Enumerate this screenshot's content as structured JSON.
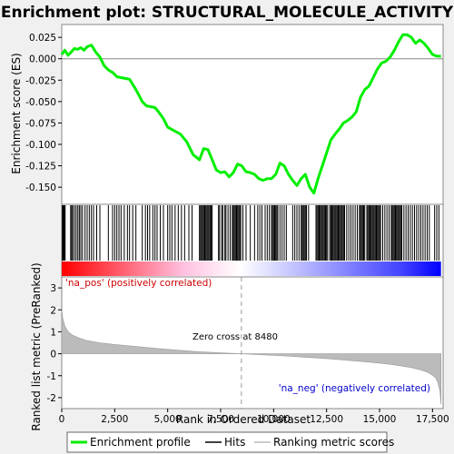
{
  "chart_data": {
    "type": "line",
    "title": "Enrichment plot: STRUCTURAL_MOLECULE_ACTIVITY",
    "xlabel": "Rank in Ordered Dataset",
    "ylabel_top": "Enrichment score (ES)",
    "ylabel_bottom": "Ranked list metric (PreRanked)",
    "xlim": [
      0,
      18000
    ],
    "x_ticks": [
      0,
      2500,
      5000,
      7500,
      10000,
      12500,
      15000,
      17500
    ],
    "x_tick_labels": [
      "0",
      "2,500",
      "5,000",
      "7,500",
      "10,000",
      "12,500",
      "15,000",
      "17,500"
    ],
    "es_ylim": [
      -0.17,
      0.04
    ],
    "es_ticks": [
      0.025,
      0.0,
      -0.025,
      -0.05,
      -0.075,
      -0.1,
      -0.125,
      -0.15
    ],
    "es_tick_labels": [
      "0.025",
      "0.000",
      "-0.025",
      "-0.050",
      "-0.075",
      "-0.100",
      "-0.125",
      "-0.150"
    ],
    "metric_ylim": [
      -2.5,
      3.5
    ],
    "metric_ticks": [
      3,
      2,
      1,
      0,
      -1,
      -2
    ],
    "metric_tick_labels": [
      "3",
      "2",
      "1",
      "0",
      "-1",
      "-2"
    ],
    "series": [
      {
        "name": "Enrichment profile",
        "color": "#00ee00",
        "x": [
          0,
          150,
          300,
          450,
          600,
          750,
          900,
          1050,
          1200,
          1400,
          1600,
          1800,
          2000,
          2200,
          2400,
          2600,
          2800,
          3000,
          3200,
          3500,
          3800,
          4000,
          4200,
          4400,
          4600,
          4800,
          5000,
          5300,
          5600,
          5900,
          6200,
          6500,
          6700,
          6900,
          7100,
          7300,
          7500,
          7700,
          7900,
          8100,
          8300,
          8500,
          8700,
          8900,
          9100,
          9300,
          9500,
          9700,
          9900,
          10100,
          10300,
          10500,
          10700,
          10900,
          11100,
          11300,
          11500,
          11700,
          11900,
          12100,
          12300,
          12500,
          12700,
          12900,
          13100,
          13300,
          13500,
          13700,
          13900,
          14100,
          14300,
          14500,
          14700,
          14900,
          15100,
          15300,
          15500,
          15700,
          15900,
          16100,
          16300,
          16500,
          16700,
          16900,
          17100,
          17300,
          17500,
          17700,
          17900
        ],
        "y": [
          0.005,
          0.01,
          0.004,
          0.008,
          0.012,
          0.011,
          0.013,
          0.01,
          0.014,
          0.016,
          0.008,
          0.002,
          -0.008,
          -0.013,
          -0.016,
          -0.021,
          -0.022,
          -0.023,
          -0.024,
          -0.036,
          -0.05,
          -0.055,
          -0.056,
          -0.057,
          -0.063,
          -0.07,
          -0.08,
          -0.084,
          -0.088,
          -0.097,
          -0.112,
          -0.118,
          -0.105,
          -0.106,
          -0.118,
          -0.13,
          -0.133,
          -0.132,
          -0.138,
          -0.133,
          -0.123,
          -0.125,
          -0.132,
          -0.133,
          -0.135,
          -0.14,
          -0.142,
          -0.14,
          -0.14,
          -0.135,
          -0.122,
          -0.125,
          -0.135,
          -0.142,
          -0.148,
          -0.14,
          -0.135,
          -0.15,
          -0.157,
          -0.14,
          -0.125,
          -0.11,
          -0.095,
          -0.088,
          -0.082,
          -0.075,
          -0.072,
          -0.068,
          -0.062,
          -0.045,
          -0.036,
          -0.032,
          -0.022,
          -0.012,
          -0.005,
          -0.003,
          0.002,
          0.01,
          0.02,
          0.028,
          0.028,
          0.025,
          0.018,
          0.022,
          0.018,
          0.012,
          0.005,
          0.003,
          0.003
        ]
      },
      {
        "name": "Hits",
        "color": "#000000",
        "positions": [
          30,
          60,
          90,
          120,
          160,
          420,
          470,
          520,
          600,
          680,
          760,
          830,
          900,
          980,
          1100,
          1200,
          1300,
          1400,
          1500,
          1650,
          1800,
          2200,
          2400,
          2500,
          2600,
          2700,
          2800,
          2950,
          3100,
          3200,
          3350,
          3500,
          3800,
          3950,
          4050,
          4150,
          4300,
          4400,
          4500,
          4650,
          4800,
          5000,
          5100,
          5200,
          5350,
          5500,
          5650,
          5800,
          6000,
          6150,
          6500,
          6550,
          6600,
          6650,
          6700,
          6750,
          6800,
          6850,
          6900,
          6950,
          7000,
          7050,
          7100,
          7400,
          7450,
          7550,
          7600,
          7700,
          7750,
          7850,
          7950,
          8050,
          8100,
          8150,
          8200,
          8250,
          8300,
          8350,
          8400,
          8450,
          8550,
          8700,
          8900,
          9100,
          9250,
          9350,
          9450,
          9600,
          9700,
          9800,
          9900,
          9950,
          10000,
          10050,
          10100,
          10150,
          10200,
          10300,
          10400,
          10500,
          10600,
          10900,
          11000,
          11100,
          11200,
          11300,
          11350,
          11400,
          11450,
          11500,
          11550,
          11650,
          12000,
          12050,
          12100,
          12150,
          12200,
          12250,
          12300,
          12350,
          12400,
          12450,
          12500,
          12550,
          12650,
          12700,
          12750,
          12800,
          12850,
          12900,
          12950,
          13000,
          13050,
          13100,
          13150,
          13200,
          13250,
          13300,
          13350,
          13450,
          13550,
          13650,
          13750,
          13850,
          13950,
          14050,
          14100,
          14150,
          14200,
          14250,
          14300,
          14400,
          14450,
          14500,
          14550,
          14600,
          14650,
          14700,
          14750,
          14800,
          14850,
          14900,
          14950,
          15000,
          15050,
          15150,
          15250,
          15350,
          15450,
          15550,
          15600,
          15650,
          15700,
          15750,
          15800,
          15850,
          15900,
          15950,
          16000,
          16050,
          16150,
          16250,
          16350,
          16450,
          16550,
          16650,
          16750,
          16850,
          16950,
          17050,
          17150,
          17250,
          17350,
          17600,
          17700,
          17800
        ]
      },
      {
        "name": "Ranking metric scores",
        "color": "#bbbbbb",
        "x": [
          0,
          50,
          150,
          300,
          500,
          800,
          1200,
          1800,
          2500,
          3500,
          4500,
          5500,
          6500,
          7500,
          8480,
          9500,
          10500,
          11500,
          12500,
          13500,
          14500,
          15500,
          16000,
          16500,
          17000,
          17300,
          17500,
          17650,
          17750,
          17850,
          17900
        ],
        "y": [
          2.0,
          1.6,
          1.25,
          1.0,
          0.85,
          0.72,
          0.6,
          0.5,
          0.42,
          0.33,
          0.24,
          0.16,
          0.09,
          0.04,
          0.0,
          -0.05,
          -0.1,
          -0.16,
          -0.22,
          -0.3,
          -0.38,
          -0.48,
          -0.55,
          -0.63,
          -0.75,
          -0.86,
          -0.98,
          -1.1,
          -1.3,
          -1.7,
          -2.3
        ]
      }
    ],
    "annotations": {
      "zero_cross": "Zero cross at 8480",
      "zero_cross_x": 8480,
      "pos_label": "'na_pos' (positively correlated)",
      "neg_label": "'na_neg' (negatively correlated)"
    },
    "colors": {
      "pos_label": "#cc0000",
      "neg_label": "#0000cc",
      "bar_start": "#ff0000",
      "bar_mid": "#ffffff",
      "bar_end": "#0000ff"
    },
    "legend": {
      "placement": "bottom",
      "entries": [
        "Enrichment profile",
        "Hits",
        "Ranking metric scores"
      ]
    }
  }
}
